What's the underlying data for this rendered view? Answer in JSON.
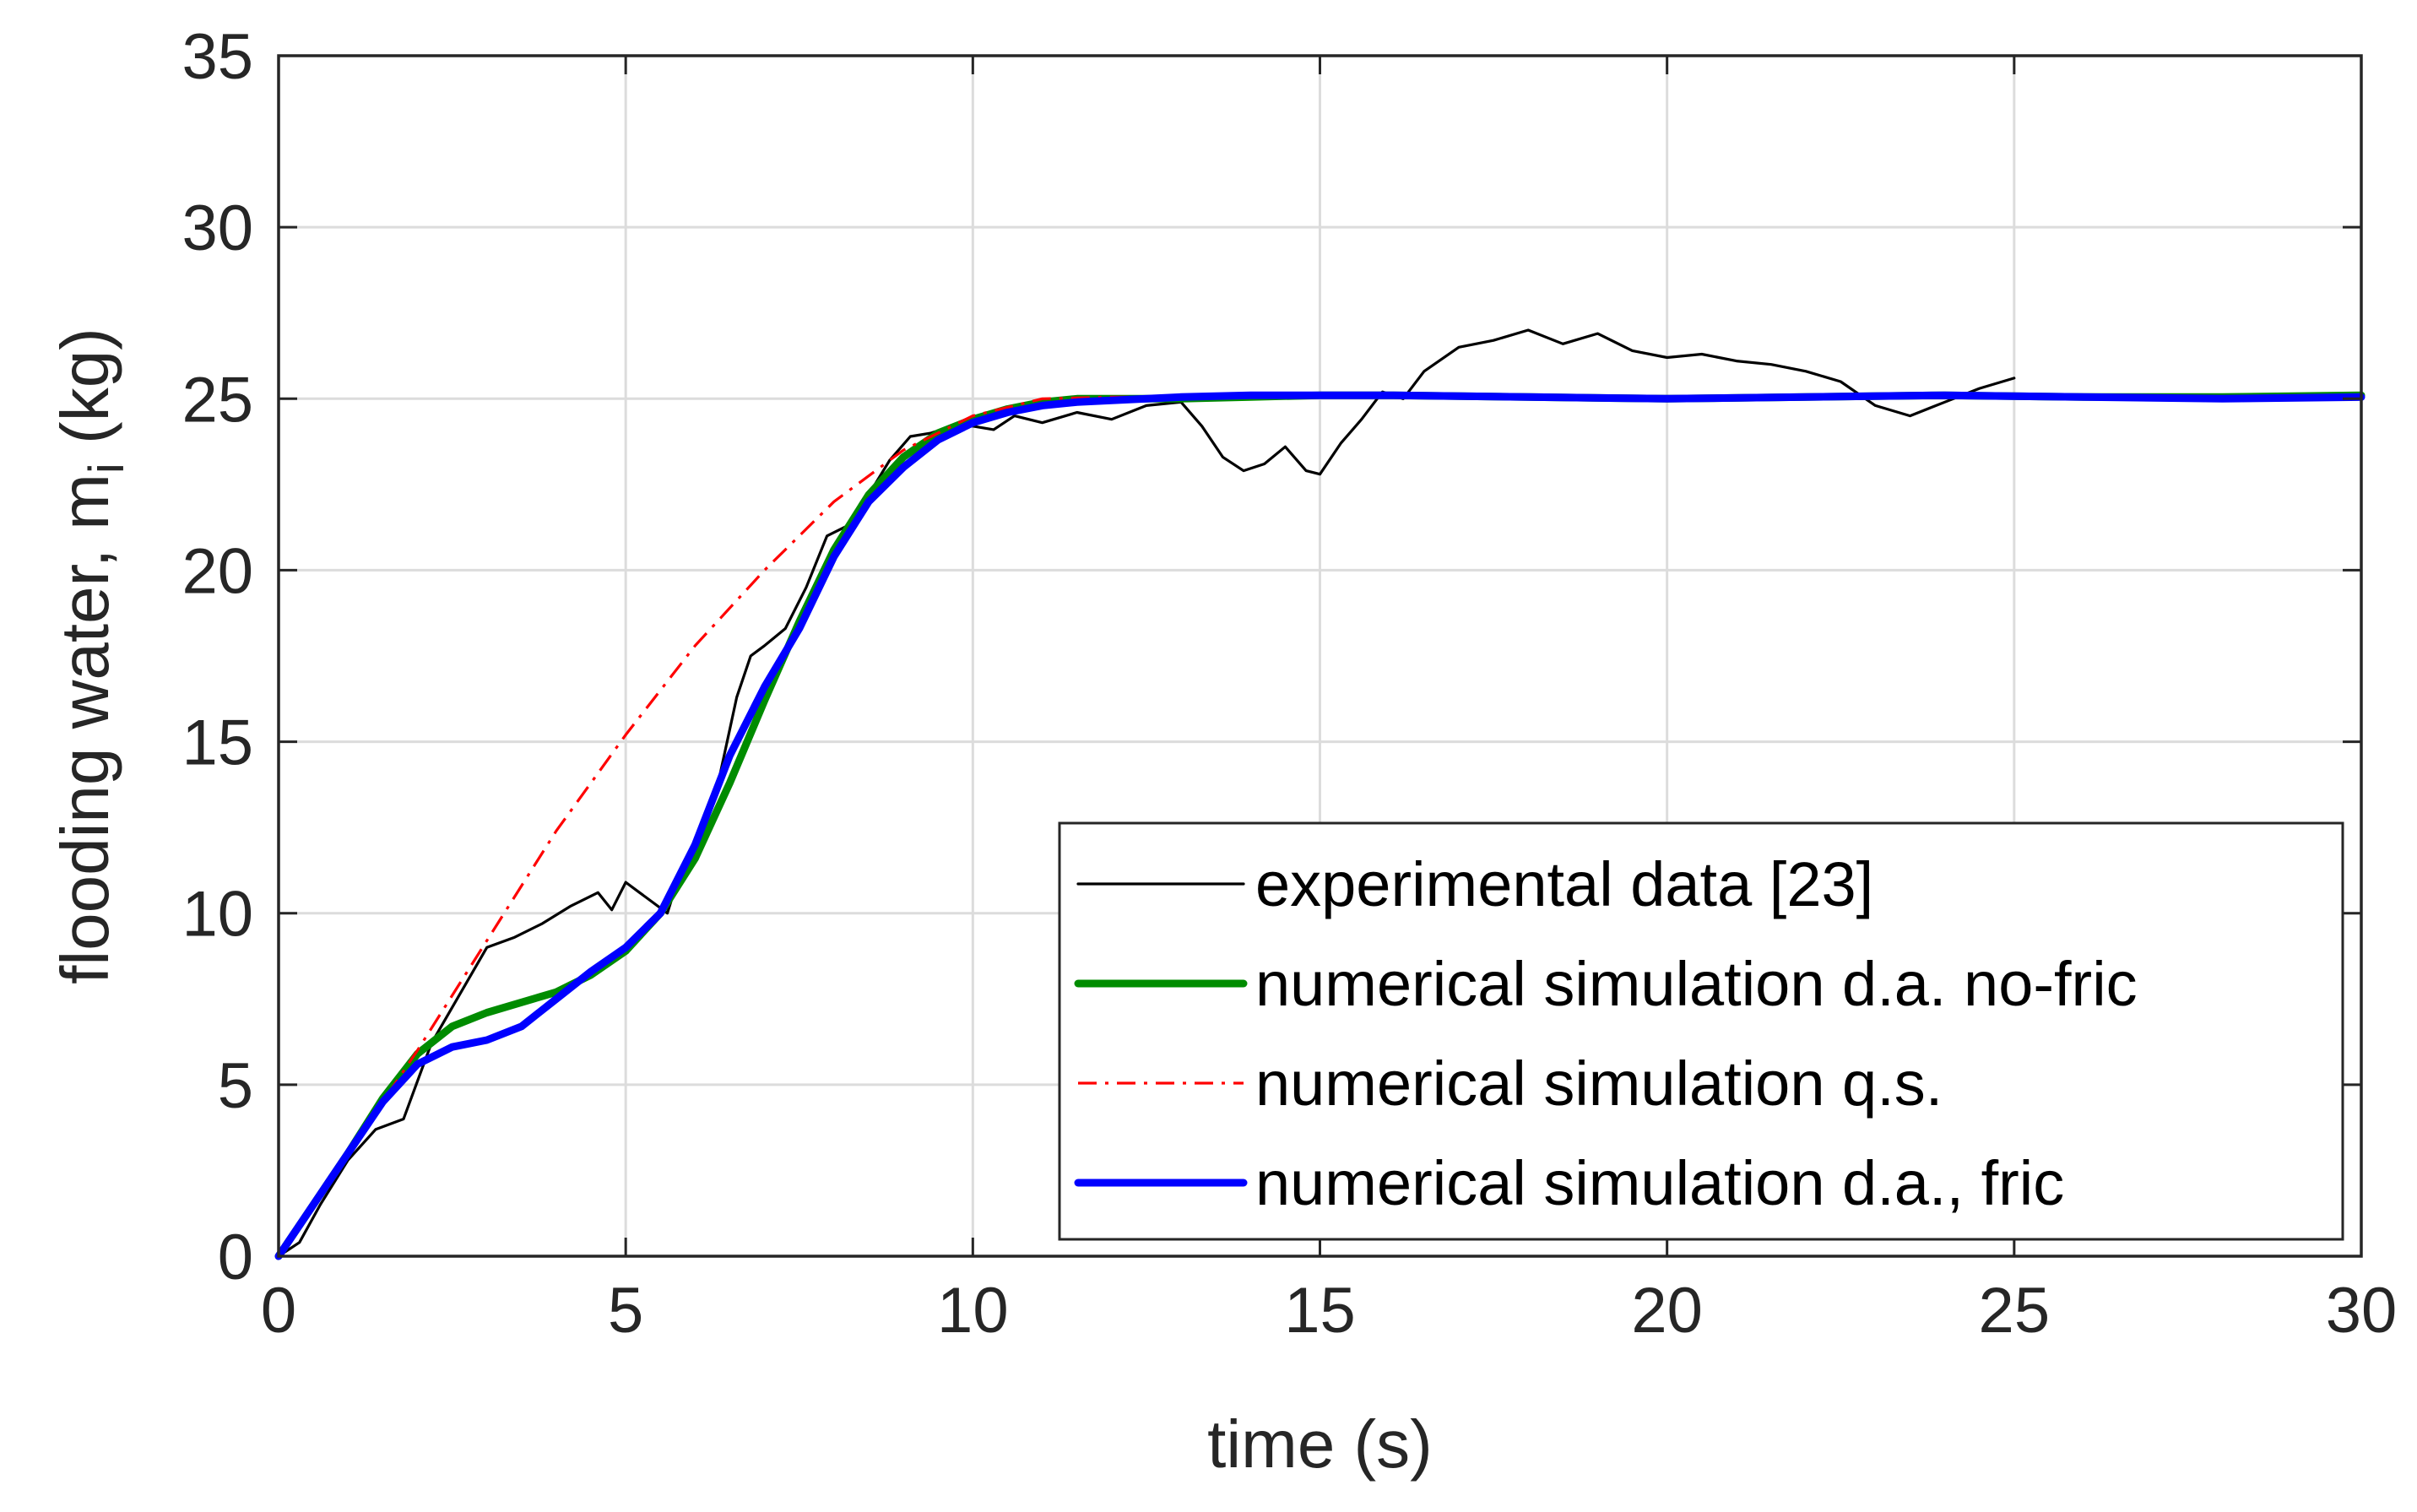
{
  "chart_data": {
    "type": "line",
    "title": "",
    "xlabel": "time (s)",
    "ylabel_main": "flooding water, m",
    "ylabel_sub": "i",
    "ylabel_unit": " (kg)",
    "xlim": [
      0,
      30
    ],
    "ylim": [
      0,
      35
    ],
    "xticks": [
      0,
      5,
      10,
      15,
      20,
      25,
      30
    ],
    "yticks": [
      0,
      5,
      10,
      15,
      20,
      25,
      30,
      35
    ],
    "grid": true,
    "legend_position": "bottom-right",
    "series": [
      {
        "name": "experimental data [23]",
        "color": "#000000",
        "style": "solid",
        "width": "thin",
        "x": [
          0,
          0.3,
          0.6,
          1.0,
          1.4,
          1.8,
          2.2,
          2.6,
          3.0,
          3.4,
          3.8,
          4.2,
          4.6,
          4.8,
          5.0,
          5.2,
          5.4,
          5.6,
          5.8,
          6.0,
          6.3,
          6.6,
          6.8,
          7.0,
          7.3,
          7.6,
          7.9,
          8.2,
          8.5,
          8.8,
          9.1,
          9.4,
          9.7,
          10.0,
          10.3,
          10.6,
          11.0,
          11.5,
          12.0,
          12.5,
          13.0,
          13.3,
          13.6,
          13.9,
          14.2,
          14.5,
          14.8,
          15.0,
          15.3,
          15.6,
          15.9,
          16.2,
          16.5,
          17.0,
          17.5,
          18.0,
          18.5,
          19.0,
          19.5,
          20.0,
          20.5,
          21.0,
          21.5,
          22.0,
          22.5,
          23.0,
          23.5,
          24.0,
          24.5,
          25.0
        ],
        "y": [
          0,
          0.4,
          1.5,
          2.8,
          3.7,
          4.0,
          6.2,
          7.6,
          9.0,
          9.3,
          9.7,
          10.2,
          10.6,
          10.1,
          10.9,
          10.6,
          10.3,
          10.0,
          11.3,
          12.1,
          13.5,
          16.3,
          17.5,
          17.8,
          18.3,
          19.5,
          21.0,
          21.3,
          22.2,
          23.2,
          23.9,
          24.0,
          24.2,
          24.2,
          24.1,
          24.5,
          24.3,
          24.6,
          24.4,
          24.8,
          24.9,
          24.2,
          23.3,
          22.9,
          23.1,
          23.6,
          22.9,
          22.8,
          23.7,
          24.4,
          25.2,
          25.0,
          25.8,
          26.5,
          26.7,
          27.0,
          26.6,
          26.9,
          26.4,
          26.2,
          26.3,
          26.1,
          26.0,
          25.8,
          25.5,
          24.8,
          24.5,
          24.9,
          25.3,
          25.6
        ]
      },
      {
        "name": "numerical simulation d.a. no-fric",
        "color": "#008C00",
        "style": "solid",
        "width": "thick",
        "x": [
          0,
          0.5,
          1.0,
          1.5,
          2.0,
          2.5,
          3.0,
          3.5,
          4.0,
          4.5,
          5.0,
          5.5,
          6.0,
          6.5,
          7.0,
          7.5,
          8.0,
          8.5,
          9.0,
          9.5,
          10.0,
          10.5,
          11.0,
          11.5,
          12.0,
          13.0,
          14.0,
          15.0,
          16.0,
          18.0,
          20.0,
          22.0,
          24.0,
          26.0,
          28.0,
          30.0
        ],
        "y": [
          0,
          1.5,
          3.0,
          4.6,
          5.9,
          6.7,
          7.1,
          7.4,
          7.7,
          8.2,
          8.9,
          10.0,
          11.6,
          13.8,
          16.2,
          18.5,
          20.6,
          22.2,
          23.3,
          24.0,
          24.4,
          24.7,
          24.9,
          25.0,
          25.0,
          25.0,
          25.05,
          25.1,
          25.1,
          25.05,
          25.0,
          25.05,
          25.1,
          25.05,
          25.05,
          25.1
        ]
      },
      {
        "name": "numerical simulation q.s.",
        "color": "#FF0000",
        "style": "dashdot",
        "width": "thin",
        "x": [
          0,
          1.0,
          2.0,
          3.0,
          4.0,
          5.0,
          6.0,
          7.0,
          8.0,
          9.0,
          10.0,
          11.0,
          12.0,
          13.0,
          14.0,
          16.0,
          18.0,
          20.0,
          22.0,
          24.0,
          26.0,
          28.0,
          30.0
        ],
        "y": [
          0,
          3.0,
          6.0,
          9.2,
          12.4,
          15.2,
          17.8,
          20.0,
          22.0,
          23.5,
          24.5,
          25.0,
          25.05,
          25.05,
          25.05,
          25.1,
          25.1,
          25.05,
          25.05,
          25.1,
          25.05,
          25.05,
          25.1
        ]
      },
      {
        "name": "numerical simulation d.a., fric",
        "color": "#0000FF",
        "style": "solid",
        "width": "thick",
        "x": [
          0,
          0.5,
          1.0,
          1.5,
          2.0,
          2.5,
          3.0,
          3.5,
          4.0,
          4.5,
          5.0,
          5.5,
          6.0,
          6.5,
          7.0,
          7.5,
          8.0,
          8.5,
          9.0,
          9.5,
          10.0,
          10.5,
          11.0,
          11.5,
          12.0,
          13.0,
          14.0,
          15.0,
          16.0,
          18.0,
          20.0,
          22.0,
          24.0,
          26.0,
          28.0,
          30.0
        ],
        "y": [
          0,
          1.5,
          3.0,
          4.5,
          5.6,
          6.1,
          6.3,
          6.7,
          7.5,
          8.3,
          9.0,
          10.0,
          12.0,
          14.6,
          16.6,
          18.3,
          20.4,
          22.0,
          23.0,
          23.8,
          24.3,
          24.6,
          24.8,
          24.9,
          24.95,
          25.05,
          25.1,
          25.1,
          25.1,
          25.05,
          25.0,
          25.05,
          25.1,
          25.05,
          25.0,
          25.05
        ]
      }
    ]
  }
}
